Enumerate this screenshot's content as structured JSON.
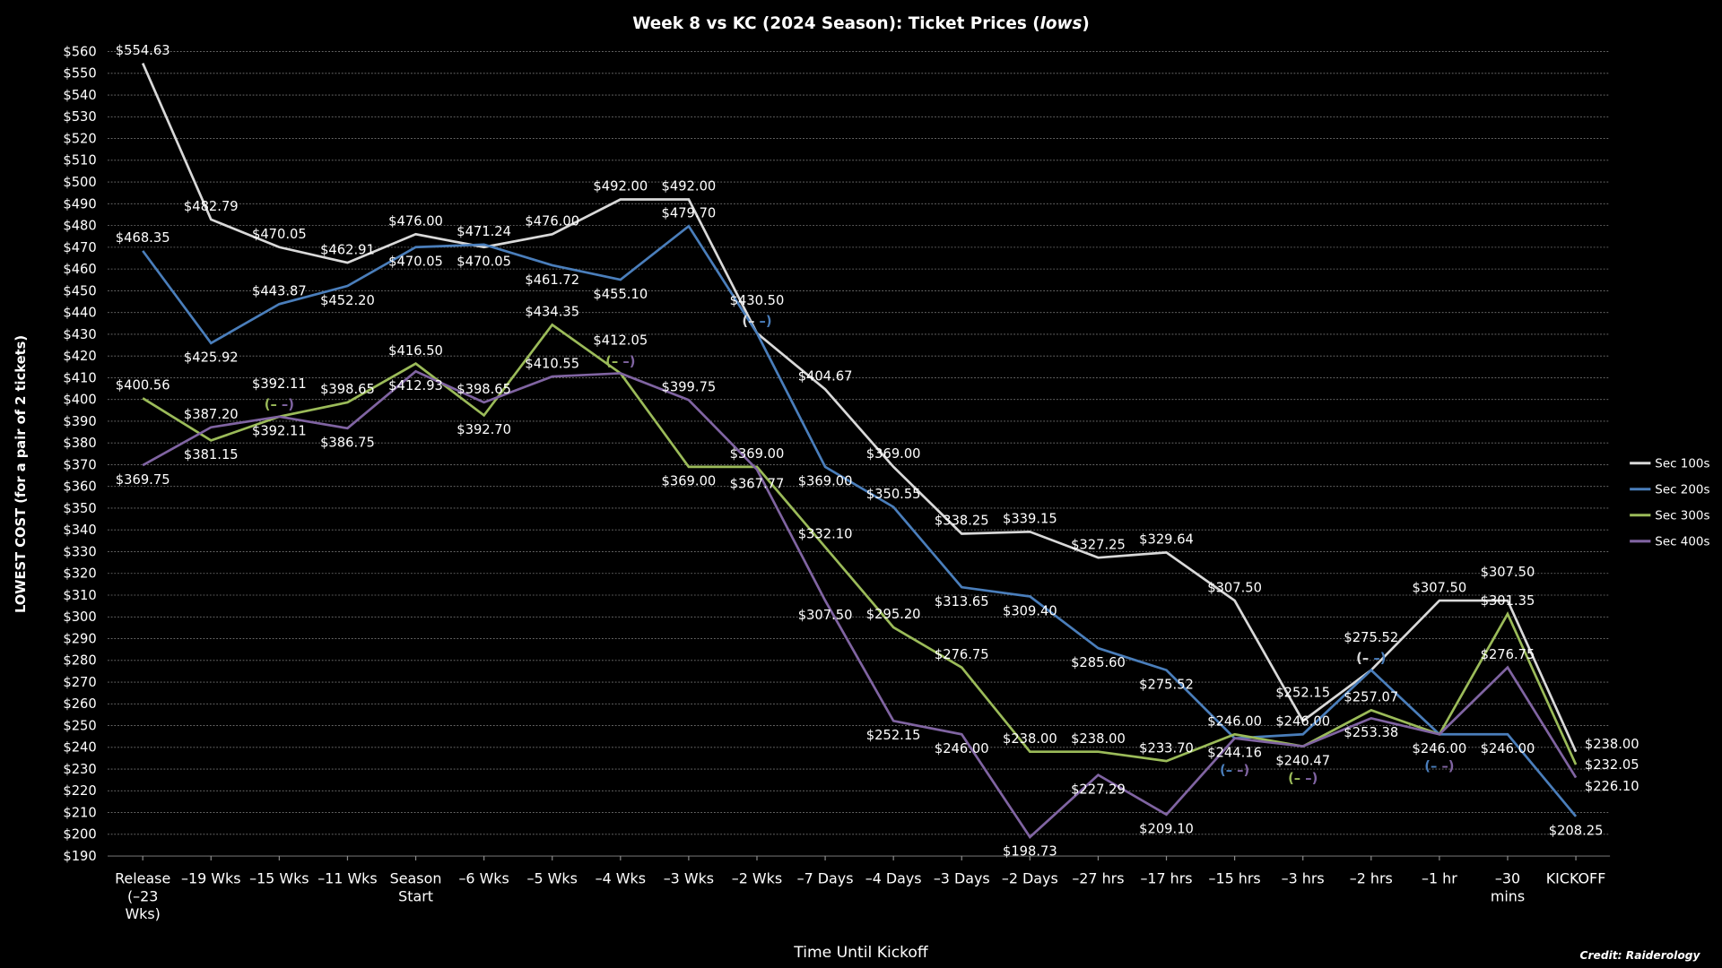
{
  "chart_data": {
    "type": "line",
    "title_prefix": "Week 8 vs KC (2024 Season): Ticket Prices (",
    "title_emph": "lows",
    "title_suffix": ")",
    "xlabel": "Time Until Kickoff",
    "ylabel": "LOWEST COST (for a pair of 2 tickets)",
    "credit": "Credit: Raiderology",
    "ylim": [
      190,
      560
    ],
    "ytick_step": 10,
    "ytick_prefix": "$",
    "grid": true,
    "legend_placement": "right",
    "tie_marker": "(– –)",
    "categories": [
      [
        "Release",
        "(–23",
        "Wks)"
      ],
      [
        "–19 Wks"
      ],
      [
        "–15 Wks"
      ],
      [
        "–11 Wks"
      ],
      [
        "Season",
        "Start"
      ],
      [
        "–6 Wks"
      ],
      [
        "–5 Wks"
      ],
      [
        "–4 Wks"
      ],
      [
        "–3 Wks"
      ],
      [
        "–2 Wks"
      ],
      [
        "–7 Days"
      ],
      [
        "–4 Days"
      ],
      [
        "–3 Days"
      ],
      [
        "–2 Days"
      ],
      [
        "–27 hrs"
      ],
      [
        "–17 hrs"
      ],
      [
        "–15 hrs"
      ],
      [
        "–3 hrs"
      ],
      [
        "–2 hrs"
      ],
      [
        "–1 hr"
      ],
      [
        "–30",
        "mins"
      ],
      [
        "KICKOFF"
      ]
    ],
    "series": [
      {
        "name": "Sec 100s",
        "color": "#d9d9d9",
        "values": [
          554.63,
          482.79,
          470.05,
          462.91,
          476.0,
          470.05,
          476.0,
          492.0,
          492.0,
          430.5,
          404.67,
          369.0,
          338.25,
          339.15,
          327.25,
          329.64,
          307.5,
          252.15,
          275.52,
          307.5,
          307.5,
          238.0
        ]
      },
      {
        "name": "Sec 200s",
        "color": "#4a7ebb",
        "values": [
          468.35,
          425.92,
          443.87,
          452.2,
          470.05,
          471.24,
          461.72,
          455.1,
          479.7,
          430.5,
          369.0,
          350.55,
          313.65,
          309.4,
          285.6,
          275.52,
          244.16,
          246.0,
          275.52,
          246.0,
          246.0,
          208.25
        ]
      },
      {
        "name": "Sec 300s",
        "color": "#9bbb59",
        "values": [
          400.56,
          381.15,
          392.11,
          398.65,
          416.5,
          392.7,
          434.35,
          412.05,
          369.0,
          369.0,
          332.1,
          295.2,
          276.75,
          238.0,
          238.0,
          233.7,
          246.0,
          240.47,
          257.07,
          246.0,
          301.35,
          232.05
        ]
      },
      {
        "name": "Sec 400s",
        "color": "#8064a2",
        "values": [
          369.75,
          387.2,
          392.11,
          386.75,
          412.93,
          398.65,
          410.55,
          412.05,
          399.75,
          367.77,
          307.5,
          252.15,
          246.0,
          198.73,
          227.29,
          209.1,
          244.16,
          240.47,
          253.38,
          246.0,
          276.75,
          226.1
        ]
      }
    ],
    "ties": [
      {
        "index": 2,
        "series": [
          2,
          3
        ]
      },
      {
        "index": 7,
        "series": [
          2,
          3
        ]
      },
      {
        "index": 9,
        "series": [
          0,
          1
        ]
      },
      {
        "index": 16,
        "series": [
          1,
          3
        ]
      },
      {
        "index": 17,
        "series": [
          2,
          3
        ]
      },
      {
        "index": 18,
        "series": [
          0,
          1
        ]
      },
      {
        "index": 19,
        "series": [
          1,
          2,
          3
        ]
      }
    ]
  }
}
